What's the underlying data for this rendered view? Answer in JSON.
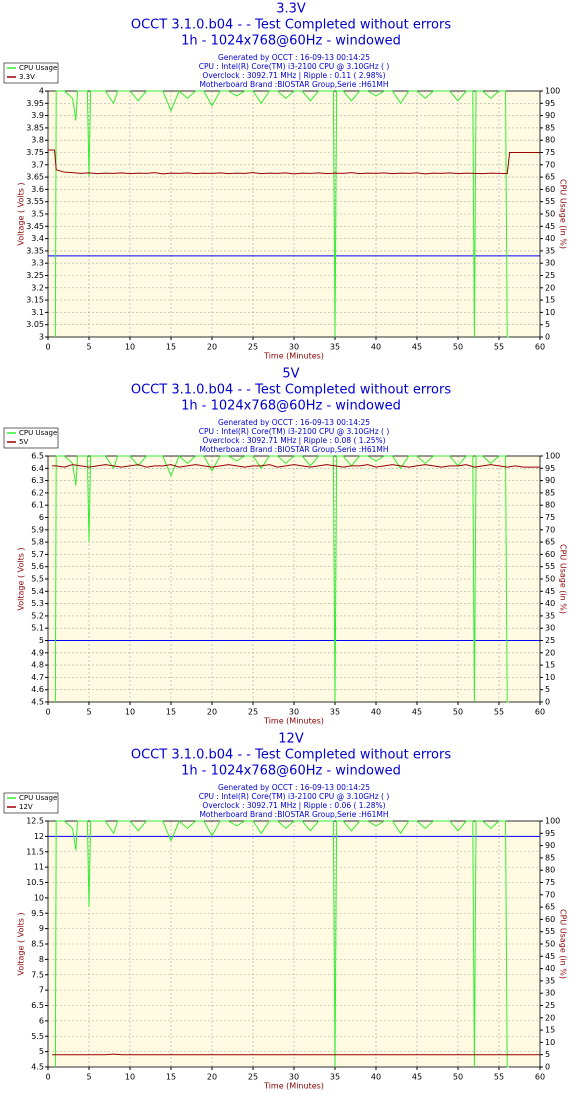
{
  "chart_data": [
    {
      "type": "line",
      "title": "3.3V",
      "subtitle": [
        "OCCT 3.1.0.b04 -  - Test Completed without errors",
        "1h - 1024x768@60Hz - windowed"
      ],
      "info": [
        "Generated by OCCT : 16-09-13 00:14:25",
        "CPU : Intel(R) Core(TM) i3-2100 CPU @ 3.10GHz (  )",
        "Overclock : 3092.71 MHz | Ripple : 0.11 ( 2.98%)",
        "Motherboard Brand :BIOSTAR Group,Serie :H61MH"
      ],
      "xlabel": "Time (Minutes)",
      "ylabel": "Voltage ( Volts )",
      "y2label": "CPU Usage (in %)",
      "grid": true,
      "legend": "top-left",
      "xlim": [
        0,
        60
      ],
      "xticks": [
        0,
        5,
        10,
        15,
        20,
        25,
        30,
        35,
        40,
        45,
        50,
        55,
        60
      ],
      "ylim": [
        3,
        4
      ],
      "yticks": [
        3,
        3.05,
        3.1,
        3.15,
        3.2,
        3.25,
        3.3,
        3.35,
        3.4,
        3.45,
        3.5,
        3.55,
        3.6,
        3.65,
        3.7,
        3.75,
        3.8,
        3.85,
        3.9,
        3.95,
        4
      ],
      "y2lim": [
        0,
        100
      ],
      "y2ticks": [
        0,
        5,
        10,
        15,
        20,
        25,
        30,
        35,
        40,
        45,
        50,
        55,
        60,
        65,
        70,
        75,
        80,
        85,
        90,
        95,
        100
      ],
      "reference_line": {
        "value": 3.33,
        "color": "#0000ff"
      },
      "series": [
        {
          "name": "CPU Usage",
          "color": "#33ee33",
          "axis": "y2",
          "x": [
            0.9,
            1,
            2,
            3,
            3.4,
            3.6,
            4,
            4.8,
            5,
            5.2,
            6,
            7,
            8,
            8.5,
            9,
            10,
            11,
            12,
            13,
            14,
            15,
            16,
            17,
            18,
            19,
            20,
            21,
            22,
            23,
            24,
            25,
            26,
            27,
            28,
            29,
            30,
            31,
            32,
            33,
            34,
            34.8,
            35,
            35.2,
            36,
            37,
            38,
            39,
            40,
            41,
            42,
            43,
            44,
            45,
            46,
            47,
            48,
            49,
            50,
            51,
            51.8,
            52,
            52.2,
            53,
            54,
            55,
            55.8,
            56,
            56.2
          ],
          "values": [
            0,
            100,
            100,
            97,
            88,
            100,
            100,
            100,
            65,
            100,
            100,
            100,
            95,
            100,
            100,
            100,
            96,
            100,
            100,
            100,
            92,
            100,
            97,
            100,
            100,
            94,
            100,
            100,
            98,
            100,
            100,
            95,
            100,
            100,
            97,
            100,
            100,
            96,
            100,
            100,
            100,
            0,
            100,
            100,
            96,
            100,
            100,
            98,
            100,
            100,
            95,
            100,
            100,
            97,
            100,
            100,
            100,
            96,
            100,
            100,
            0,
            100,
            100,
            97,
            100,
            100,
            0,
            0
          ]
        },
        {
          "name": "3.3V",
          "color": "#990000",
          "x": [
            0,
            0.8,
            1,
            2,
            3,
            4,
            5,
            6,
            7,
            8,
            9,
            10,
            11,
            12,
            13,
            14,
            15,
            16,
            17,
            18,
            19,
            20,
            21,
            22,
            23,
            24,
            25,
            26,
            27,
            28,
            29,
            30,
            31,
            32,
            33,
            34,
            35,
            36,
            37,
            38,
            39,
            40,
            41,
            42,
            43,
            44,
            45,
            46,
            47,
            48,
            49,
            50,
            51,
            52,
            53,
            54,
            55,
            56,
            56.3,
            57,
            58,
            59,
            60
          ],
          "values": [
            3.76,
            3.76,
            3.68,
            3.67,
            3.668,
            3.665,
            3.667,
            3.664,
            3.666,
            3.665,
            3.667,
            3.664,
            3.666,
            3.665,
            3.668,
            3.663,
            3.666,
            3.665,
            3.667,
            3.664,
            3.666,
            3.665,
            3.667,
            3.664,
            3.666,
            3.665,
            3.668,
            3.664,
            3.666,
            3.665,
            3.667,
            3.663,
            3.666,
            3.665,
            3.667,
            3.664,
            3.666,
            3.665,
            3.668,
            3.664,
            3.666,
            3.665,
            3.667,
            3.664,
            3.666,
            3.665,
            3.667,
            3.663,
            3.666,
            3.665,
            3.667,
            3.664,
            3.666,
            3.665,
            3.664,
            3.666,
            3.665,
            3.664,
            3.75,
            3.75,
            3.75,
            3.75,
            3.75
          ]
        }
      ]
    },
    {
      "type": "line",
      "title": "5V",
      "subtitle": [
        "OCCT 3.1.0.b04 -  - Test Completed without errors",
        "1h - 1024x768@60Hz - windowed"
      ],
      "info": [
        "Generated by OCCT : 16-09-13 00:14:25",
        "CPU : Intel(R) Core(TM) i3-2100 CPU @ 3.10GHz (  )",
        "Overclock : 3092.71 MHz | Ripple : 0.08 ( 1.25%)",
        "Motherboard Brand :BIOSTAR Group,Serie :H61MH"
      ],
      "xlabel": "Time (Minutes)",
      "ylabel": "Voltage ( Volts )",
      "y2label": "CPU Usage (in %)",
      "grid": true,
      "legend": "top-left",
      "xlim": [
        0,
        60
      ],
      "xticks": [
        0,
        5,
        10,
        15,
        20,
        25,
        30,
        35,
        40,
        45,
        50,
        55,
        60
      ],
      "ylim": [
        4.5,
        6.5
      ],
      "yticks": [
        4.5,
        4.6,
        4.7,
        4.8,
        4.9,
        5,
        5.1,
        5.2,
        5.3,
        5.4,
        5.5,
        5.6,
        5.7,
        5.8,
        5.9,
        6,
        6.1,
        6.2,
        6.3,
        6.4,
        6.5
      ],
      "y2lim": [
        0,
        100
      ],
      "y2ticks": [
        0,
        5,
        10,
        15,
        20,
        25,
        30,
        35,
        40,
        45,
        50,
        55,
        60,
        65,
        70,
        75,
        80,
        85,
        90,
        95,
        100
      ],
      "reference_line": {
        "value": 5,
        "color": "#0000ff"
      },
      "series": [
        {
          "name": "CPU Usage",
          "color": "#33ee33",
          "axis": "y2",
          "x": [
            0.9,
            1,
            2,
            3,
            3.4,
            3.6,
            4,
            4.8,
            5,
            5.2,
            6,
            7,
            8,
            8.5,
            9,
            10,
            11,
            12,
            13,
            14,
            15,
            16,
            17,
            18,
            19,
            20,
            21,
            22,
            23,
            24,
            25,
            26,
            27,
            28,
            29,
            30,
            31,
            32,
            33,
            34,
            34.8,
            35,
            35.2,
            36,
            37,
            38,
            39,
            40,
            41,
            42,
            43,
            44,
            45,
            46,
            47,
            48,
            49,
            50,
            51,
            51.8,
            52,
            52.2,
            53,
            54,
            55,
            55.8,
            56,
            56.2
          ],
          "values": [
            0,
            100,
            100,
            97,
            88,
            100,
            100,
            100,
            65,
            100,
            100,
            100,
            95,
            100,
            100,
            100,
            96,
            100,
            100,
            100,
            92,
            100,
            97,
            100,
            100,
            94,
            100,
            100,
            98,
            100,
            100,
            95,
            100,
            100,
            97,
            100,
            100,
            96,
            100,
            100,
            100,
            0,
            100,
            100,
            96,
            100,
            100,
            98,
            100,
            100,
            95,
            100,
            100,
            97,
            100,
            100,
            100,
            96,
            100,
            100,
            0,
            100,
            100,
            97,
            100,
            100,
            0,
            0
          ]
        },
        {
          "name": "5V",
          "color": "#990000",
          "x": [
            0.5,
            1,
            2,
            3,
            4,
            5,
            6,
            7,
            8,
            9,
            10,
            11,
            12,
            13,
            14,
            15,
            16,
            17,
            18,
            19,
            20,
            21,
            22,
            23,
            24,
            25,
            26,
            27,
            28,
            29,
            30,
            31,
            32,
            33,
            34,
            35,
            36,
            37,
            38,
            39,
            40,
            41,
            42,
            43,
            44,
            45,
            46,
            47,
            48,
            49,
            50,
            51,
            52,
            53,
            54,
            55,
            56,
            57,
            58,
            59,
            60
          ],
          "values": [
            6.42,
            6.42,
            6.41,
            6.43,
            6.42,
            6.41,
            6.42,
            6.43,
            6.42,
            6.41,
            6.42,
            6.43,
            6.41,
            6.42,
            6.42,
            6.43,
            6.41,
            6.42,
            6.43,
            6.42,
            6.41,
            6.42,
            6.43,
            6.42,
            6.41,
            6.42,
            6.42,
            6.43,
            6.41,
            6.42,
            6.43,
            6.42,
            6.41,
            6.42,
            6.43,
            6.42,
            6.41,
            6.42,
            6.42,
            6.43,
            6.41,
            6.42,
            6.43,
            6.42,
            6.41,
            6.42,
            6.43,
            6.42,
            6.41,
            6.42,
            6.42,
            6.43,
            6.41,
            6.42,
            6.43,
            6.42,
            6.41,
            6.42,
            6.41,
            6.41,
            6.41
          ]
        }
      ]
    },
    {
      "type": "line",
      "title": "12V",
      "subtitle": [
        "OCCT 3.1.0.b04 -  - Test Completed without errors",
        "1h - 1024x768@60Hz - windowed"
      ],
      "info": [
        "Generated by OCCT : 16-09-13 00:14:25",
        "CPU : Intel(R) Core(TM) i3-2100 CPU @ 3.10GHz (  )",
        "Overclock : 3092.71 MHz | Ripple : 0.06 ( 1.28%)",
        "Motherboard Brand :BIOSTAR Group,Serie :H61MH"
      ],
      "xlabel": "Time (Minutes)",
      "ylabel": "Voltage ( Volts )",
      "y2label": "CPU Usage (in %)",
      "grid": true,
      "legend": "top-left",
      "xlim": [
        0,
        60
      ],
      "xticks": [
        0,
        5,
        10,
        15,
        20,
        25,
        30,
        35,
        40,
        45,
        50,
        55,
        60
      ],
      "ylim": [
        4.5,
        12.5
      ],
      "yticks": [
        4.5,
        5,
        5.5,
        6,
        6.5,
        7,
        7.5,
        8,
        8.5,
        9,
        9.5,
        10,
        10.5,
        11,
        11.5,
        12,
        12.5
      ],
      "y2lim": [
        0,
        100
      ],
      "y2ticks": [
        0,
        5,
        10,
        15,
        20,
        25,
        30,
        35,
        40,
        45,
        50,
        55,
        60,
        65,
        70,
        75,
        80,
        85,
        90,
        95,
        100
      ],
      "reference_line": {
        "value": 12,
        "color": "#0000ff"
      },
      "series": [
        {
          "name": "CPU Usage",
          "color": "#33ee33",
          "axis": "y2",
          "x": [
            0.9,
            1,
            2,
            3,
            3.4,
            3.6,
            4,
            4.8,
            5,
            5.2,
            6,
            7,
            8,
            8.5,
            9,
            10,
            11,
            12,
            13,
            14,
            15,
            16,
            17,
            18,
            19,
            20,
            21,
            22,
            23,
            24,
            25,
            26,
            27,
            28,
            29,
            30,
            31,
            32,
            33,
            34,
            34.8,
            35,
            35.2,
            36,
            37,
            38,
            39,
            40,
            41,
            42,
            43,
            44,
            45,
            46,
            47,
            48,
            49,
            50,
            51,
            51.8,
            52,
            52.2,
            53,
            54,
            55,
            55.8,
            56,
            56.2
          ],
          "values": [
            0,
            100,
            100,
            97,
            88,
            100,
            100,
            100,
            65,
            100,
            100,
            100,
            95,
            100,
            100,
            100,
            96,
            100,
            100,
            100,
            92,
            100,
            97,
            100,
            100,
            94,
            100,
            100,
            98,
            100,
            100,
            95,
            100,
            100,
            97,
            100,
            100,
            96,
            100,
            100,
            100,
            0,
            100,
            100,
            96,
            100,
            100,
            98,
            100,
            100,
            95,
            100,
            100,
            97,
            100,
            100,
            100,
            96,
            100,
            100,
            0,
            100,
            100,
            97,
            100,
            100,
            0,
            0
          ]
        },
        {
          "name": "12V",
          "color": "#990000",
          "x": [
            0.5,
            1,
            2,
            3,
            4,
            5,
            6,
            7,
            8,
            9,
            10,
            11,
            12,
            13,
            14,
            15,
            16,
            17,
            18,
            19,
            20,
            21,
            22,
            23,
            24,
            25,
            26,
            27,
            28,
            29,
            30,
            31,
            32,
            33,
            34,
            35,
            36,
            37,
            38,
            39,
            40,
            41,
            42,
            43,
            44,
            45,
            46,
            47,
            48,
            49,
            50,
            51,
            52,
            53,
            54,
            55,
            56,
            57,
            58,
            59,
            60
          ],
          "values": [
            4.9,
            4.9,
            4.9,
            4.9,
            4.9,
            4.9,
            4.9,
            4.9,
            4.92,
            4.9,
            4.9,
            4.9,
            4.9,
            4.9,
            4.9,
            4.9,
            4.9,
            4.9,
            4.9,
            4.9,
            4.9,
            4.9,
            4.9,
            4.9,
            4.9,
            4.9,
            4.9,
            4.9,
            4.9,
            4.9,
            4.9,
            4.9,
            4.9,
            4.9,
            4.9,
            4.9,
            4.9,
            4.9,
            4.9,
            4.9,
            4.9,
            4.9,
            4.9,
            4.9,
            4.9,
            4.9,
            4.9,
            4.9,
            4.9,
            4.9,
            4.9,
            4.9,
            4.9,
            4.9,
            4.9,
            4.9,
            4.9,
            4.9,
            4.9,
            4.9,
            4.9
          ]
        }
      ]
    }
  ]
}
